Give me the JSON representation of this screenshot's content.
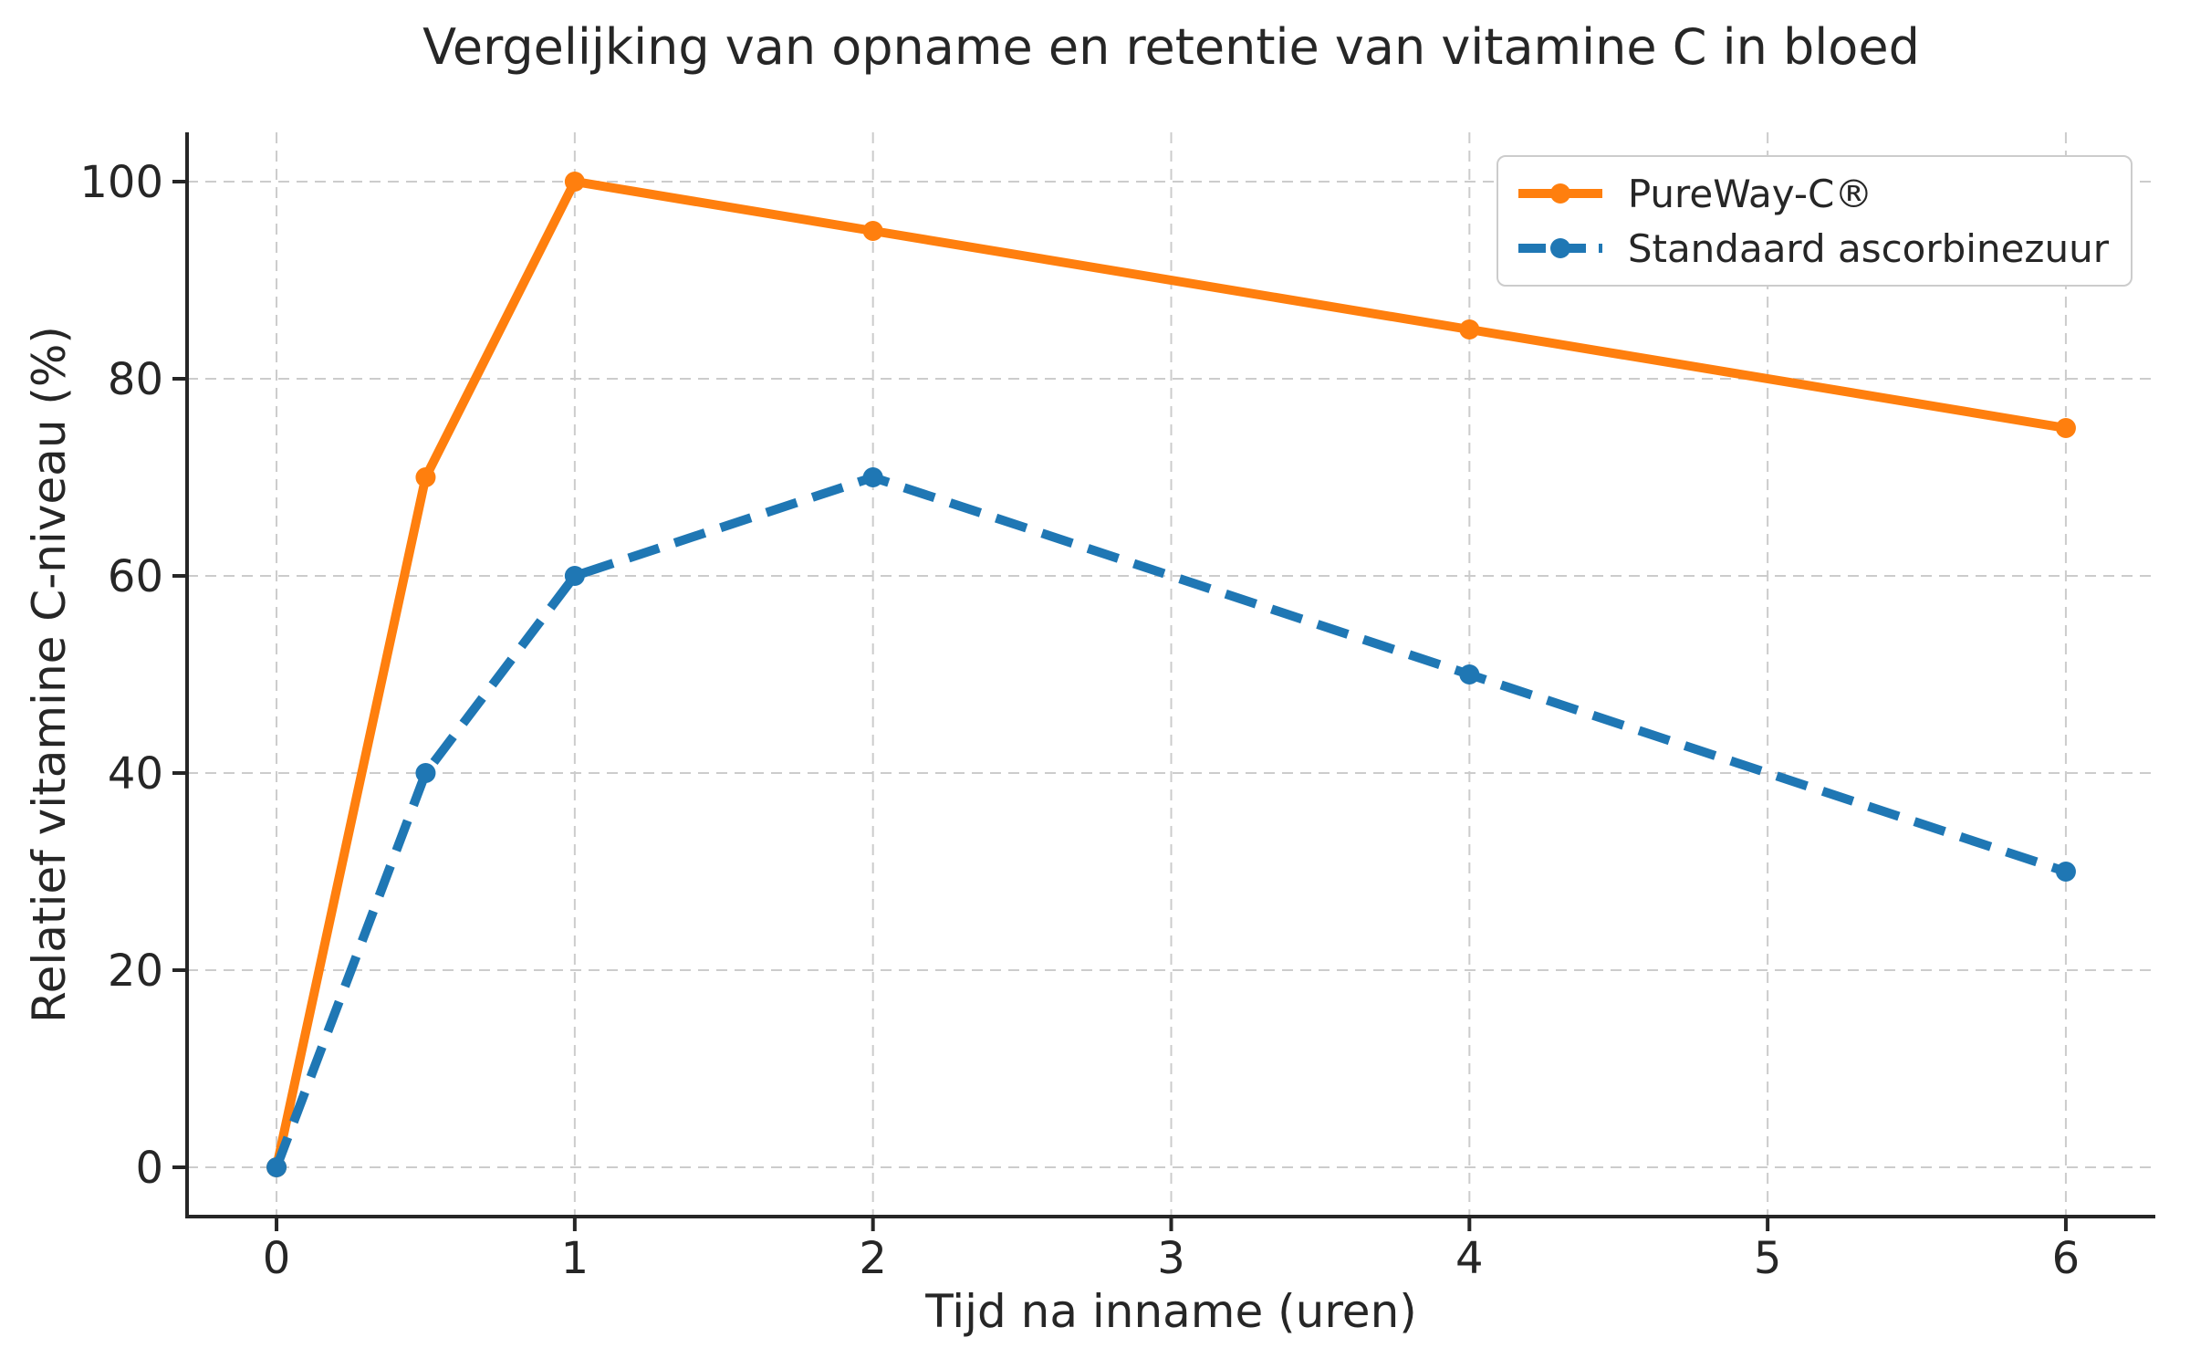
{
  "chart_data": {
    "type": "line",
    "title": "Vergelijking van opname en retentie van vitamine C in bloed",
    "xlabel": "Tijd na inname (uren)",
    "ylabel": "Relatief vitamine C-niveau (%)",
    "x": [
      0,
      0.5,
      1,
      2,
      4,
      6
    ],
    "series": [
      {
        "name": "PureWay-C®",
        "values": [
          0,
          70,
          100,
          95,
          85,
          75
        ],
        "color": "#ff7f0e",
        "line_style": "solid",
        "marker": "circle"
      },
      {
        "name": "Standaard ascorbinezuur",
        "values": [
          0,
          40,
          60,
          70,
          50,
          30
        ],
        "color": "#1f77b4",
        "line_style": "dashed",
        "marker": "circle"
      }
    ],
    "xticks": [
      0,
      1,
      2,
      3,
      4,
      5,
      6
    ],
    "yticks": [
      0,
      20,
      40,
      60,
      80,
      100
    ],
    "xtick_labels": [
      "0",
      "1",
      "2",
      "3",
      "4",
      "5",
      "6"
    ],
    "ytick_labels": [
      "0",
      "20",
      "40",
      "60",
      "80",
      "100"
    ],
    "xlim": [
      -0.3,
      6.3
    ],
    "ylim": [
      -5,
      105
    ],
    "grid": true,
    "legend_position": "upper right",
    "colors": {
      "grid": "#cccccc",
      "axis": "#262626",
      "text": "#262626",
      "background": "#ffffff"
    }
  }
}
